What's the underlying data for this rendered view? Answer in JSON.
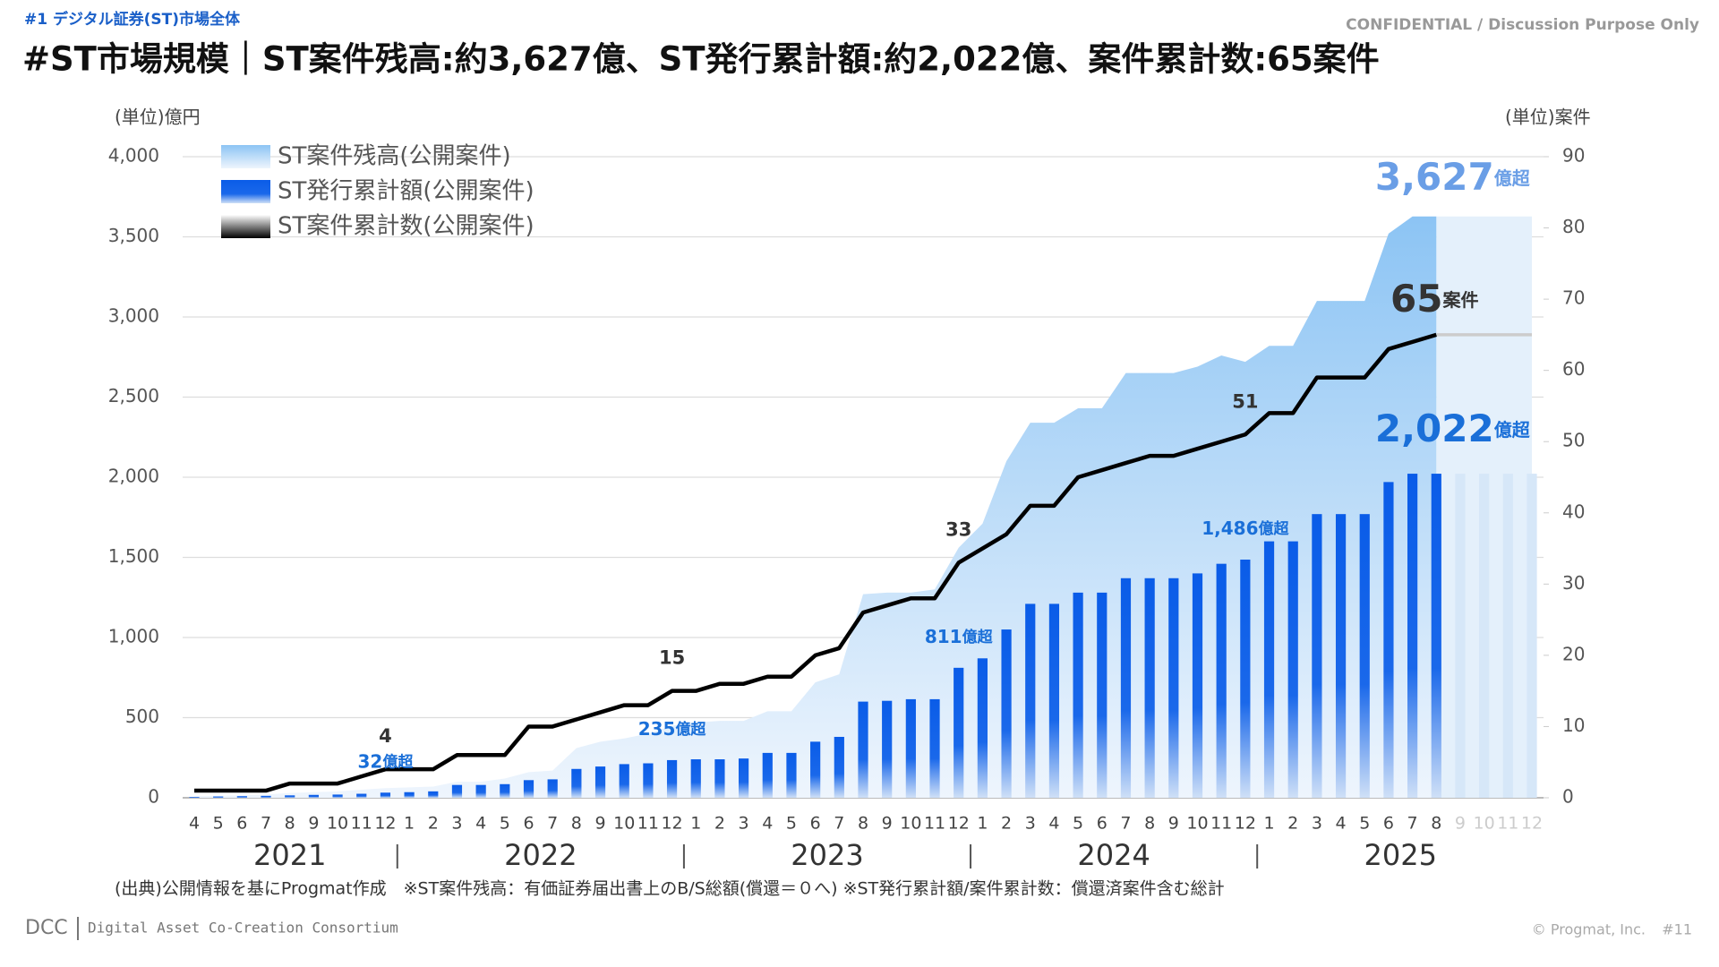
{
  "header": {
    "section": "#1 デジタル証券(ST)市場全体",
    "confidential": "CONFIDENTIAL / Discussion Purpose Only"
  },
  "chart_data": {
    "type": "combo",
    "title": "#ST市場規模｜ST案件残高:約3,627億、ST発行累計額:約2,022億、案件累計数:65案件",
    "y_label": "(単位)億円",
    "y2_label": "(単位)案件",
    "categories": [
      "4",
      "5",
      "6",
      "7",
      "8",
      "9",
      "10",
      "11",
      "12",
      "1",
      "2",
      "3",
      "4",
      "5",
      "6",
      "7",
      "8",
      "9",
      "10",
      "11",
      "12",
      "1",
      "2",
      "3",
      "4",
      "5",
      "6",
      "7",
      "8",
      "9",
      "10",
      "11",
      "12",
      "1",
      "2",
      "3",
      "4",
      "5",
      "6",
      "7",
      "8",
      "9",
      "10",
      "11",
      "12",
      "1",
      "2",
      "3",
      "4",
      "5",
      "6",
      "7",
      "8",
      "9",
      "10",
      "11",
      "12"
    ],
    "years": [
      "2021",
      "2022",
      "2023",
      "2024",
      "2025"
    ],
    "ylim": [
      0,
      4000
    ],
    "yticks": [
      0,
      500,
      {
        "value": 1000,
        "label": "1,000"
      },
      {
        "value": 1500,
        "label": "1,500"
      },
      {
        "value": 2000,
        "label": "2,000"
      },
      {
        "value": 2500,
        "label": "2,500"
      },
      {
        "value": 3000,
        "label": "3,000"
      },
      {
        "value": 3500,
        "label": "3,500"
      },
      {
        "value": 4000,
        "label": "4,000"
      }
    ],
    "y2lim": [
      0,
      90
    ],
    "y2ticks": [
      0,
      10,
      20,
      30,
      40,
      50,
      60,
      70,
      80,
      90
    ],
    "grid": true,
    "legend": "top-left",
    "series": [
      {
        "name": "ST案件残高(公開案件)",
        "kind": "area",
        "color": "#8cc4f4",
        "values": [
          10,
          12,
          15,
          20,
          30,
          35,
          40,
          50,
          60,
          65,
          70,
          100,
          100,
          120,
          160,
          170,
          310,
          350,
          370,
          400,
          450,
          470,
          480,
          480,
          540,
          540,
          720,
          770,
          1270,
          1280,
          1280,
          1300,
          1560,
          1710,
          2100,
          2340,
          2340,
          2430,
          2430,
          2650,
          2650,
          2650,
          2690,
          2760,
          2720,
          2820,
          2820,
          3100,
          3100,
          3100,
          3520,
          3627,
          3627,
          null,
          null,
          null,
          null
        ],
        "value_labels": [
          null,
          null,
          null,
          null,
          null,
          null,
          null,
          null,
          null,
          null,
          null,
          null,
          null,
          null,
          null,
          null,
          null,
          null,
          null,
          null,
          null,
          null,
          null,
          null,
          null,
          null,
          null,
          null,
          null,
          null,
          null,
          null,
          null,
          null,
          null,
          null,
          null,
          null,
          null,
          null,
          null,
          null,
          null,
          null,
          null,
          null,
          null,
          null,
          null,
          null,
          null,
          null,
          "3,627億超",
          null,
          null,
          null,
          null
        ]
      },
      {
        "name": "ST発行累計額(公開案件)",
        "kind": "bar",
        "color": "#0a5ce8",
        "values": [
          5,
          8,
          10,
          12,
          15,
          18,
          20,
          25,
          32,
          35,
          40,
          80,
          80,
          85,
          110,
          115,
          180,
          195,
          210,
          215,
          235,
          240,
          240,
          245,
          280,
          280,
          350,
          380,
          600,
          605,
          615,
          615,
          811,
          870,
          1050,
          1210,
          1210,
          1280,
          1280,
          1370,
          1370,
          1370,
          1400,
          1460,
          1486,
          1600,
          1600,
          1770,
          1770,
          1770,
          1970,
          2022,
          2022,
          null,
          null,
          null,
          null
        ],
        "value_labels": [
          null,
          null,
          null,
          null,
          null,
          null,
          null,
          null,
          "32億超",
          null,
          null,
          null,
          null,
          null,
          null,
          null,
          null,
          null,
          null,
          null,
          "235億超",
          null,
          null,
          null,
          null,
          null,
          null,
          null,
          null,
          null,
          null,
          null,
          "811億超",
          null,
          null,
          null,
          null,
          null,
          null,
          null,
          null,
          null,
          null,
          null,
          "1,486億超",
          null,
          null,
          null,
          null,
          null,
          null,
          null,
          "2,022億超",
          null,
          null,
          null,
          null
        ]
      },
      {
        "name": "ST案件累計数(公開案件)",
        "kind": "line",
        "axis": "y2",
        "color": "#000000",
        "values": [
          1,
          1,
          1,
          1,
          2,
          2,
          2,
          3,
          4,
          4,
          4,
          6,
          6,
          6,
          10,
          10,
          11,
          12,
          13,
          13,
          15,
          15,
          16,
          16,
          17,
          17,
          20,
          21,
          26,
          27,
          28,
          28,
          33,
          35,
          37,
          41,
          41,
          45,
          46,
          47,
          48,
          48,
          49,
          50,
          51,
          54,
          54,
          59,
          59,
          59,
          63,
          64,
          65,
          null,
          null,
          null,
          null
        ],
        "value_labels": [
          null,
          null,
          null,
          null,
          null,
          null,
          null,
          null,
          "4",
          null,
          null,
          null,
          null,
          null,
          null,
          null,
          null,
          null,
          null,
          null,
          "15",
          null,
          null,
          null,
          null,
          null,
          null,
          null,
          null,
          null,
          null,
          null,
          "33",
          null,
          null,
          null,
          null,
          null,
          null,
          null,
          null,
          null,
          null,
          null,
          "51",
          null,
          null,
          null,
          null,
          null,
          null,
          null,
          "65案件",
          null,
          null,
          null,
          null
        ]
      },
      {
        "kind": "area",
        "color": "#e4f0fb",
        "values": [
          null,
          null,
          null,
          null,
          null,
          null,
          null,
          null,
          null,
          null,
          null,
          null,
          null,
          null,
          null,
          null,
          null,
          null,
          null,
          null,
          null,
          null,
          null,
          null,
          null,
          null,
          null,
          null,
          null,
          null,
          null,
          null,
          null,
          null,
          null,
          null,
          null,
          null,
          null,
          null,
          null,
          null,
          null,
          null,
          null,
          null,
          null,
          null,
          null,
          null,
          null,
          null,
          3627,
          3627,
          3627,
          3627,
          3627
        ]
      },
      {
        "kind": "bar",
        "color": "#d6e7f8",
        "values": [
          null,
          null,
          null,
          null,
          null,
          null,
          null,
          null,
          null,
          null,
          null,
          null,
          null,
          null,
          null,
          null,
          null,
          null,
          null,
          null,
          null,
          null,
          null,
          null,
          null,
          null,
          null,
          null,
          null,
          null,
          null,
          null,
          null,
          null,
          null,
          null,
          null,
          null,
          null,
          null,
          null,
          null,
          null,
          null,
          null,
          null,
          null,
          null,
          null,
          null,
          null,
          null,
          null,
          2022,
          2022,
          2022,
          2022
        ]
      },
      {
        "kind": "line",
        "axis": "y2",
        "color": "#cccccc",
        "values": [
          null,
          null,
          null,
          null,
          null,
          null,
          null,
          null,
          null,
          null,
          null,
          null,
          null,
          null,
          null,
          null,
          null,
          null,
          null,
          null,
          null,
          null,
          null,
          null,
          null,
          null,
          null,
          null,
          null,
          null,
          null,
          null,
          null,
          null,
          null,
          null,
          null,
          null,
          null,
          null,
          null,
          null,
          null,
          null,
          null,
          null,
          null,
          null,
          null,
          null,
          null,
          null,
          65,
          65,
          65,
          65,
          65
        ]
      }
    ],
    "note": "(出典)公開情報を基にProgmat作成　※ST案件残高：有価証券届出書上のB/S総額(償還＝０へ) ※ST発行累計額/案件累計数：償還済案件含む総計"
  },
  "footer": {
    "logo": "DCC",
    "org": "Digital Asset Co-Creation Consortium",
    "copyright": "© Progmat, Inc.",
    "page": "#11"
  }
}
